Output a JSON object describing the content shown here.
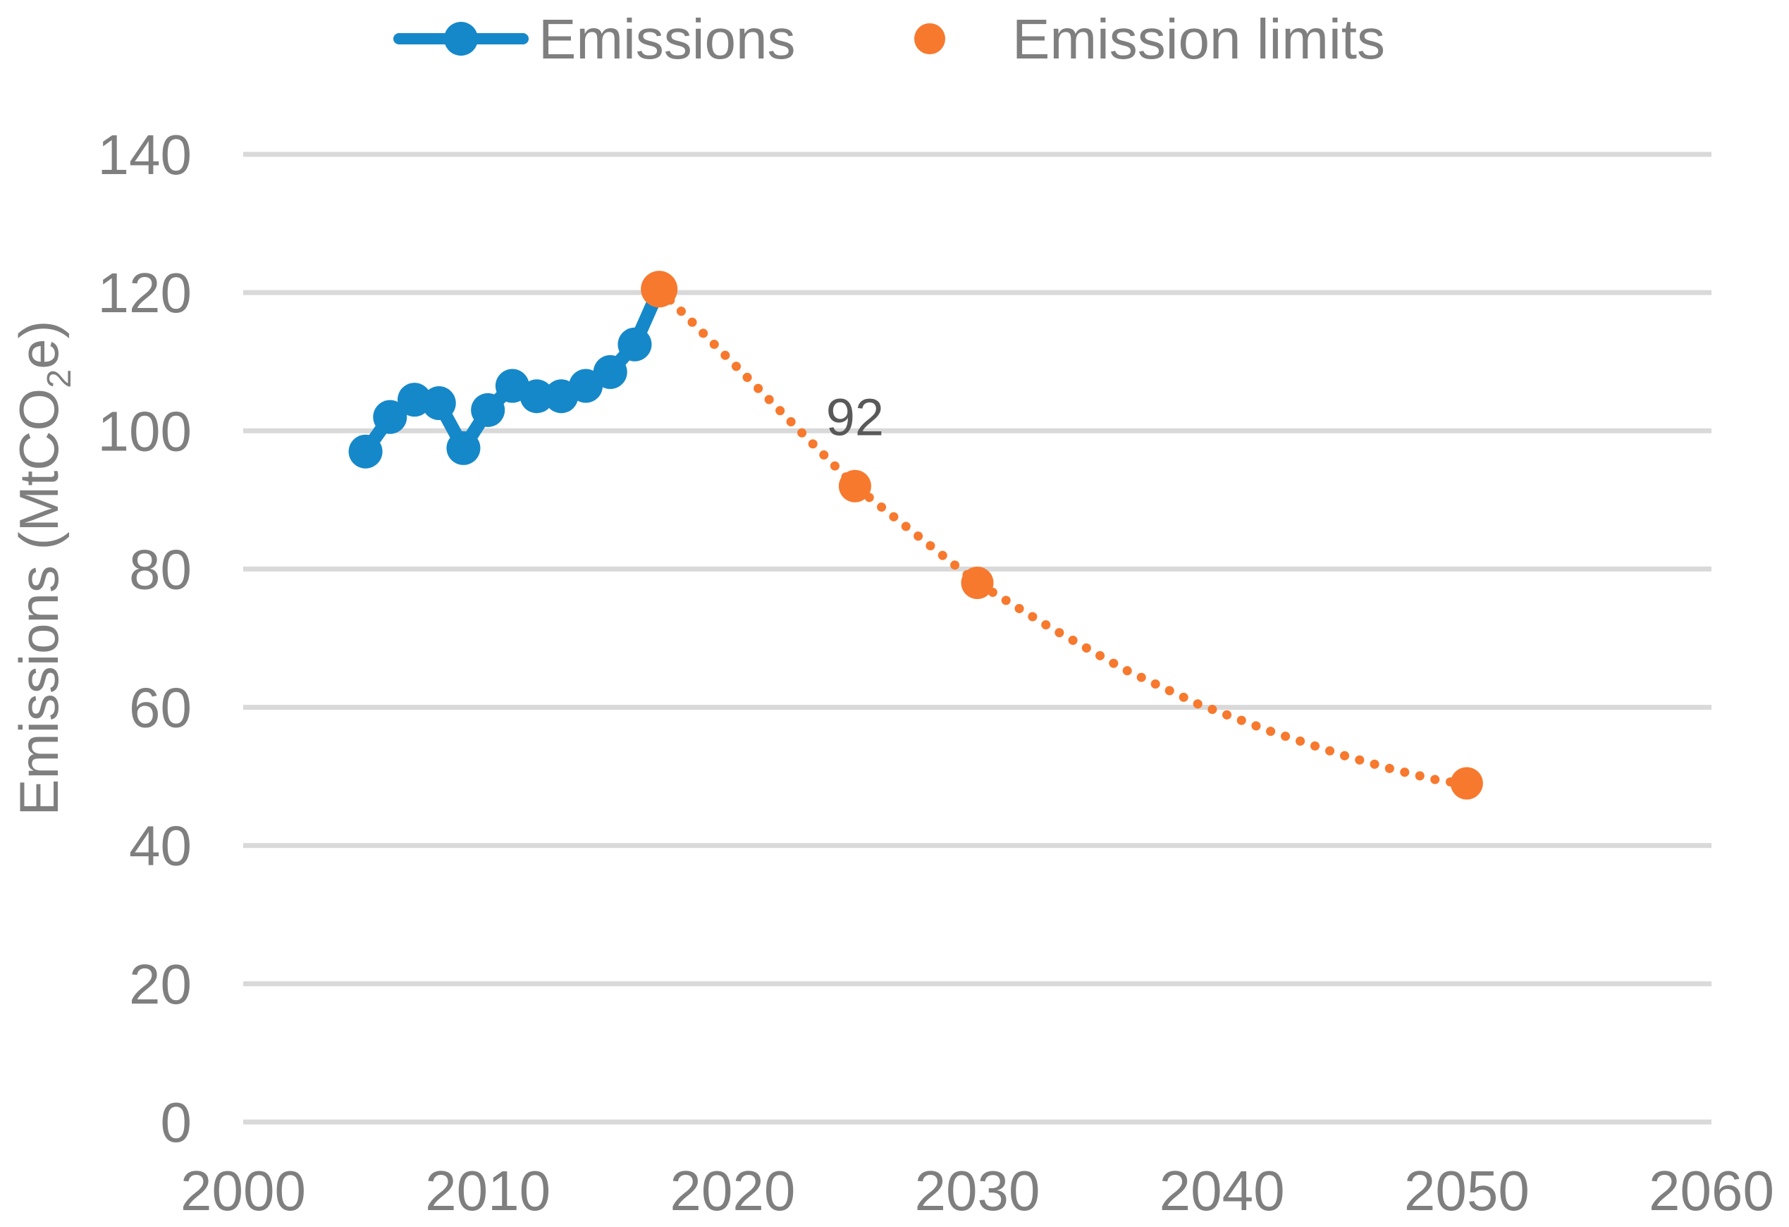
{
  "chart_data": {
    "type": "line",
    "title": "",
    "xlabel": "",
    "ylabel": "Emissions (MtCO2e)",
    "ylabel_parts": {
      "pre": "Emissions (MtCO",
      "sub": "2",
      "post": "e)"
    },
    "xlim": [
      2000,
      2060
    ],
    "ylim": [
      0,
      140
    ],
    "x_ticks": [
      2000,
      2010,
      2020,
      2030,
      2040,
      2050,
      2060
    ],
    "y_ticks": [
      0,
      20,
      40,
      60,
      80,
      100,
      120,
      140
    ],
    "grid": "horizontal",
    "legend_position": "top-center",
    "series": [
      {
        "name": "Emissions",
        "color": "#1588c9",
        "style": "solid-line-with-markers",
        "x": [
          2005,
          2006,
          2007,
          2008,
          2009,
          2010,
          2011,
          2012,
          2013,
          2014,
          2015,
          2016,
          2017
        ],
        "values": [
          97,
          102,
          104.5,
          104,
          97.5,
          103,
          106.5,
          105,
          105,
          106.5,
          108.5,
          112.5,
          120.5
        ]
      },
      {
        "name": "Emission limits",
        "color": "#f7792e",
        "style": "dotted-line-with-markers",
        "markers": {
          "x": [
            2017,
            2025,
            2030,
            2050
          ],
          "values": [
            120.5,
            92,
            78,
            49
          ]
        },
        "path": {
          "x": [
            2017,
            2019,
            2021,
            2023,
            2025,
            2027,
            2030,
            2033,
            2036,
            2039,
            2042,
            2045,
            2047,
            2049,
            2050
          ],
          "values": [
            120.5,
            113.4,
            106.3,
            99.1,
            92,
            86.4,
            78,
            71.5,
            65.5,
            60.5,
            56.5,
            53,
            51,
            49.3,
            49
          ]
        }
      }
    ],
    "annotations": [
      {
        "text": "92",
        "x": 2025,
        "value": 92,
        "offset_y": -72
      }
    ]
  },
  "legend": {
    "items": [
      {
        "label": "Emissions"
      },
      {
        "label": "Emission limits"
      }
    ]
  },
  "colors": {
    "emissions_blue": "#1588c9",
    "limits_orange": "#f7792e",
    "gridline": "#d9d9d9",
    "tick_text": "#7f7f7f",
    "annotation_text": "#595959",
    "background": "#ffffff"
  }
}
